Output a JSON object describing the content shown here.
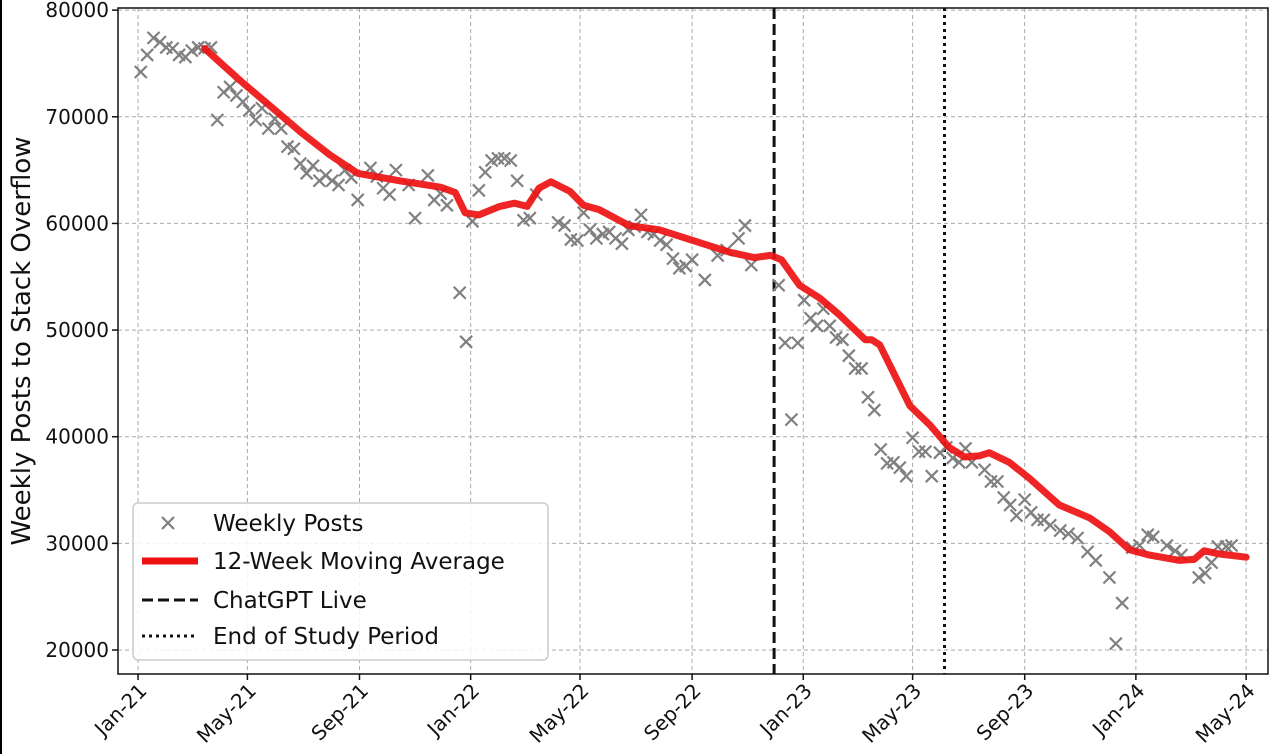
{
  "chart_data": {
    "type": "line",
    "title": "",
    "xlabel": "",
    "ylabel": "Weekly Posts to Stack Overflow",
    "xlim": [
      "2020-12-10",
      "2024-05-25"
    ],
    "ylim": [
      17750,
      80200
    ],
    "grid": true,
    "legend_position": "bottom-left",
    "y_ticks": [
      20000,
      30000,
      40000,
      50000,
      60000,
      70000,
      80000
    ],
    "x_ticks": [
      {
        "date": "2021-01-01",
        "label": "Jan-21"
      },
      {
        "date": "2021-05-01",
        "label": "May-21"
      },
      {
        "date": "2021-09-01",
        "label": "Sep-21"
      },
      {
        "date": "2022-01-01",
        "label": "Jan-22"
      },
      {
        "date": "2022-05-01",
        "label": "May-22"
      },
      {
        "date": "2022-09-01",
        "label": "Sep-22"
      },
      {
        "date": "2023-01-01",
        "label": "Jan-23"
      },
      {
        "date": "2023-05-01",
        "label": "May-23"
      },
      {
        "date": "2023-09-01",
        "label": "Sep-23"
      },
      {
        "date": "2024-01-01",
        "label": "Jan-24"
      },
      {
        "date": "2024-05-01",
        "label": "May-24"
      }
    ],
    "colors": {
      "scatter": "#808080",
      "moving_average": "#ee1111",
      "vlines": "#111111"
    },
    "series": [
      {
        "name": "Weekly Posts",
        "type": "scatter",
        "marker": "x",
        "points": [
          [
            "2021-01-04",
            74200
          ],
          [
            "2021-01-11",
            75800
          ],
          [
            "2021-01-18",
            77400
          ],
          [
            "2021-01-25",
            77000
          ],
          [
            "2021-02-01",
            76500
          ],
          [
            "2021-02-08",
            76400
          ],
          [
            "2021-02-15",
            75800
          ],
          [
            "2021-02-22",
            75600
          ],
          [
            "2021-03-01",
            76200
          ],
          [
            "2021-03-08",
            76500
          ],
          [
            "2021-03-15",
            76400
          ],
          [
            "2021-03-22",
            76500
          ],
          [
            "2021-03-29",
            69700
          ],
          [
            "2021-04-05",
            72300
          ],
          [
            "2021-04-12",
            72800
          ],
          [
            "2021-04-19",
            72000
          ],
          [
            "2021-04-26",
            71400
          ],
          [
            "2021-05-03",
            70600
          ],
          [
            "2021-05-10",
            69700
          ],
          [
            "2021-05-17",
            70800
          ],
          [
            "2021-05-24",
            68900
          ],
          [
            "2021-05-31",
            69800
          ],
          [
            "2021-06-07",
            68900
          ],
          [
            "2021-06-14",
            67200
          ],
          [
            "2021-06-21",
            67000
          ],
          [
            "2021-06-28",
            65600
          ],
          [
            "2021-07-05",
            64700
          ],
          [
            "2021-07-12",
            65400
          ],
          [
            "2021-07-19",
            64000
          ],
          [
            "2021-07-26",
            64500
          ],
          [
            "2021-08-02",
            64000
          ],
          [
            "2021-08-09",
            63600
          ],
          [
            "2021-08-16",
            65000
          ],
          [
            "2021-08-23",
            64300
          ],
          [
            "2021-08-30",
            62200
          ],
          [
            "2021-09-13",
            65200
          ],
          [
            "2021-09-20",
            64400
          ],
          [
            "2021-09-27",
            63300
          ],
          [
            "2021-10-04",
            62700
          ],
          [
            "2021-10-11",
            65000
          ],
          [
            "2021-10-25",
            63600
          ],
          [
            "2021-11-01",
            60500
          ],
          [
            "2021-11-15",
            64500
          ],
          [
            "2021-11-22",
            62200
          ],
          [
            "2021-11-29",
            62800
          ],
          [
            "2021-12-06",
            61700
          ],
          [
            "2021-12-20",
            53500
          ],
          [
            "2021-12-27",
            48900
          ],
          [
            "2022-01-03",
            60200
          ],
          [
            "2022-01-10",
            63100
          ],
          [
            "2022-01-17",
            64800
          ],
          [
            "2022-01-24",
            65900
          ],
          [
            "2022-01-31",
            66100
          ],
          [
            "2022-02-07",
            66100
          ],
          [
            "2022-02-14",
            65900
          ],
          [
            "2022-02-21",
            64000
          ],
          [
            "2022-02-28",
            60300
          ],
          [
            "2022-03-07",
            60500
          ],
          [
            "2022-03-14",
            62700
          ],
          [
            "2022-04-07",
            60100
          ],
          [
            "2022-04-14",
            59800
          ],
          [
            "2022-04-21",
            58500
          ],
          [
            "2022-04-28",
            58400
          ],
          [
            "2022-05-05",
            61000
          ],
          [
            "2022-05-12",
            59400
          ],
          [
            "2022-05-19",
            58600
          ],
          [
            "2022-05-26",
            59000
          ],
          [
            "2022-06-02",
            59200
          ],
          [
            "2022-06-09",
            58600
          ],
          [
            "2022-06-16",
            58100
          ],
          [
            "2022-06-23",
            59400
          ],
          [
            "2022-06-30",
            59700
          ],
          [
            "2022-07-07",
            60800
          ],
          [
            "2022-07-14",
            59200
          ],
          [
            "2022-07-21",
            59000
          ],
          [
            "2022-07-28",
            58400
          ],
          [
            "2022-08-04",
            58000
          ],
          [
            "2022-08-11",
            56700
          ],
          [
            "2022-08-18",
            55800
          ],
          [
            "2022-08-25",
            56000
          ],
          [
            "2022-09-01",
            56600
          ],
          [
            "2022-09-15",
            54700
          ],
          [
            "2022-09-29",
            57000
          ],
          [
            "2022-10-09",
            57500
          ],
          [
            "2022-10-22",
            58600
          ],
          [
            "2022-10-29",
            59800
          ],
          [
            "2022-11-05",
            56100
          ],
          [
            "2022-12-05",
            54200
          ],
          [
            "2022-12-12",
            48800
          ],
          [
            "2022-12-19",
            41600
          ],
          [
            "2022-12-26",
            48800
          ],
          [
            "2023-01-02",
            52800
          ],
          [
            "2023-01-09",
            51100
          ],
          [
            "2023-01-16",
            50400
          ],
          [
            "2023-01-23",
            52000
          ],
          [
            "2023-01-30",
            50400
          ],
          [
            "2023-02-06",
            49300
          ],
          [
            "2023-02-13",
            49100
          ],
          [
            "2023-02-20",
            47600
          ],
          [
            "2023-02-27",
            46400
          ],
          [
            "2023-03-06",
            46400
          ],
          [
            "2023-03-13",
            43700
          ],
          [
            "2023-03-20",
            42500
          ],
          [
            "2023-03-27",
            38800
          ],
          [
            "2023-04-03",
            37500
          ],
          [
            "2023-04-10",
            37600
          ],
          [
            "2023-04-17",
            37100
          ],
          [
            "2023-04-24",
            36300
          ],
          [
            "2023-05-01",
            39900
          ],
          [
            "2023-05-08",
            38600
          ],
          [
            "2023-05-15",
            38600
          ],
          [
            "2023-05-22",
            36300
          ],
          [
            "2023-05-31",
            38500
          ],
          [
            "2023-06-07",
            39000
          ],
          [
            "2023-06-14",
            38000
          ],
          [
            "2023-06-21",
            37600
          ],
          [
            "2023-06-28",
            38900
          ],
          [
            "2023-07-05",
            37600
          ],
          [
            "2023-07-19",
            36900
          ],
          [
            "2023-07-26",
            35800
          ],
          [
            "2023-08-02",
            35800
          ],
          [
            "2023-08-09",
            34300
          ],
          [
            "2023-08-16",
            33600
          ],
          [
            "2023-08-23",
            32600
          ],
          [
            "2023-09-01",
            34100
          ],
          [
            "2023-09-08",
            32900
          ],
          [
            "2023-09-15",
            32200
          ],
          [
            "2023-09-22",
            32200
          ],
          [
            "2023-09-29",
            31700
          ],
          [
            "2023-10-10",
            31200
          ],
          [
            "2023-10-19",
            30900
          ],
          [
            "2023-10-29",
            30500
          ],
          [
            "2023-11-09",
            29200
          ],
          [
            "2023-11-18",
            28400
          ],
          [
            "2023-12-03",
            26800
          ],
          [
            "2023-12-10",
            20600
          ],
          [
            "2023-12-17",
            24400
          ],
          [
            "2023-12-28",
            29600
          ],
          [
            "2024-01-05",
            29800
          ],
          [
            "2024-01-14",
            30800
          ],
          [
            "2024-01-20",
            30600
          ],
          [
            "2024-02-04",
            29800
          ],
          [
            "2024-02-13",
            29300
          ],
          [
            "2024-02-20",
            28900
          ],
          [
            "2024-03-10",
            26800
          ],
          [
            "2024-03-17",
            27200
          ],
          [
            "2024-03-24",
            28200
          ],
          [
            "2024-03-31",
            29700
          ],
          [
            "2024-04-09",
            29700
          ],
          [
            "2024-04-15",
            29800
          ]
        ]
      },
      {
        "name": "12-Week Moving Average",
        "type": "line",
        "points": [
          [
            "2021-03-15",
            76400
          ],
          [
            "2021-04-23",
            73400
          ],
          [
            "2021-05-26",
            71000
          ],
          [
            "2021-06-28",
            68600
          ],
          [
            "2021-07-31",
            66400
          ],
          [
            "2021-08-30",
            64700
          ],
          [
            "2021-10-15",
            64000
          ],
          [
            "2021-11-29",
            63400
          ],
          [
            "2021-12-15",
            62900
          ],
          [
            "2021-12-26",
            61000
          ],
          [
            "2022-01-10",
            60800
          ],
          [
            "2022-02-02",
            61600
          ],
          [
            "2022-02-18",
            61900
          ],
          [
            "2022-03-04",
            61600
          ],
          [
            "2022-03-17",
            63300
          ],
          [
            "2022-03-30",
            63900
          ],
          [
            "2022-04-20",
            63000
          ],
          [
            "2022-05-05",
            61700
          ],
          [
            "2022-05-22",
            61300
          ],
          [
            "2022-06-24",
            59800
          ],
          [
            "2022-07-27",
            59400
          ],
          [
            "2022-09-09",
            58200
          ],
          [
            "2022-10-12",
            57300
          ],
          [
            "2022-11-08",
            56800
          ],
          [
            "2022-11-26",
            57000
          ],
          [
            "2022-12-08",
            56600
          ],
          [
            "2022-12-28",
            54200
          ],
          [
            "2023-01-19",
            53000
          ],
          [
            "2023-02-10",
            51400
          ],
          [
            "2023-03-10",
            49100
          ],
          [
            "2023-03-17",
            49100
          ],
          [
            "2023-03-26",
            48600
          ],
          [
            "2023-04-28",
            42900
          ],
          [
            "2023-05-20",
            41100
          ],
          [
            "2023-06-10",
            39000
          ],
          [
            "2023-06-27",
            38100
          ],
          [
            "2023-07-13",
            38200
          ],
          [
            "2023-07-24",
            38500
          ],
          [
            "2023-08-15",
            37600
          ],
          [
            "2023-09-06",
            36100
          ],
          [
            "2023-10-09",
            33600
          ],
          [
            "2023-11-11",
            32400
          ],
          [
            "2023-12-03",
            31100
          ],
          [
            "2023-12-25",
            29400
          ],
          [
            "2024-01-16",
            28900
          ],
          [
            "2024-02-18",
            28400
          ],
          [
            "2024-03-05",
            28500
          ],
          [
            "2024-03-16",
            29300
          ],
          [
            "2024-04-02",
            29000
          ],
          [
            "2024-05-01",
            28700
          ]
        ]
      }
    ],
    "vlines": [
      {
        "name": "ChatGPT Live",
        "date": "2022-11-30",
        "style": "dashed"
      },
      {
        "name": "End of Study Period",
        "date": "2023-06-05",
        "style": "dotted"
      }
    ]
  }
}
